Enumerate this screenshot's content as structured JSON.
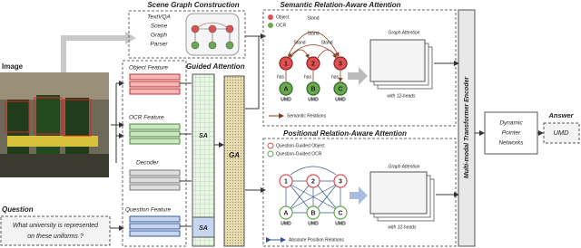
{
  "image": {
    "label": "Image"
  },
  "question": {
    "label": "Question",
    "text": [
      "What university is represented",
      "on these uniforms ?"
    ]
  },
  "scene_graph": {
    "title": "Scene Graph Construction",
    "parser": [
      "TextVQA",
      "Scene",
      "Graph",
      "Parser"
    ]
  },
  "features": {
    "object": "Object Feature",
    "ocr": "OCR Feature",
    "decoder": "Decoder",
    "question": "Question Feature"
  },
  "guided_attention": {
    "title": "Guided Attention",
    "sa": [
      "SA",
      "SA"
    ],
    "ga": "GA"
  },
  "semantic": {
    "title": "Semantic Relation-Aware Attention",
    "legend": [
      "Object",
      "OCR"
    ],
    "edges": [
      "Stand",
      "Stand",
      "Stand",
      "Stand",
      "has",
      "has",
      "has"
    ],
    "objects": [
      "1",
      "2",
      "3"
    ],
    "ocr": [
      "A",
      "B",
      "C"
    ],
    "ocr_text": [
      "UMD",
      "UMD",
      "UMD"
    ],
    "graph_attention": "Graph Attention",
    "heads": "with 12-heads",
    "relations": "Semantic Relations"
  },
  "positional": {
    "title": "Positional Relation-Aware Attention",
    "legend": [
      "Question-Guided Object",
      "Question-Guided OCR"
    ],
    "objects": [
      "1",
      "2",
      "3"
    ],
    "ocr": [
      "A",
      "B",
      "C"
    ],
    "ocr_text": [
      "UMD",
      "UMD",
      "UMD"
    ],
    "graph_attention": "Graph Attention",
    "heads": "with 12-heads",
    "relations": "Absolute Position Relations"
  },
  "encoder": "Multi-modal Transformer Encoder",
  "pointer": [
    "Dynamic",
    "Pointer",
    "Networks"
  ],
  "answer": {
    "label": "Answer",
    "text": "UMD"
  }
}
